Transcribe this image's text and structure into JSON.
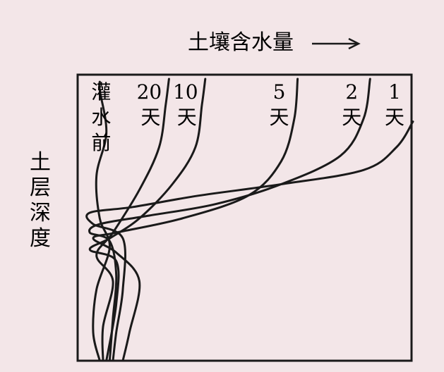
{
  "chart_data": {
    "type": "line",
    "title": "",
    "xlabel": "土壤含水量",
    "ylabel": "土层深度",
    "xlim": [
      0,
      1
    ],
    "ylim": [
      0,
      1
    ],
    "grid": false,
    "legend": "none",
    "series": [
      {
        "label_lines": [
          "灌",
          "水",
          "前"
        ],
        "points": [
          [
            0.05,
            0.02
          ],
          [
            0.05,
            0.05
          ],
          [
            0.07,
            0.2
          ],
          [
            0.04,
            0.35
          ],
          [
            0.05,
            0.5
          ],
          [
            0.08,
            0.6
          ],
          [
            0.04,
            0.75
          ],
          [
            0.03,
            0.9
          ],
          [
            0.05,
            1.0
          ]
        ]
      },
      {
        "label_lines": [
          "20",
          "天"
        ],
        "points": [
          [
            0.26,
            0.01
          ],
          [
            0.25,
            0.1
          ],
          [
            0.23,
            0.25
          ],
          [
            0.17,
            0.4
          ],
          [
            0.09,
            0.55
          ],
          [
            0.04,
            0.63
          ],
          [
            0.09,
            0.72
          ],
          [
            0.06,
            0.88
          ],
          [
            0.06,
            1.0
          ]
        ]
      },
      {
        "label_lines": [
          "10",
          "天"
        ],
        "points": [
          [
            0.37,
            0.01
          ],
          [
            0.36,
            0.1
          ],
          [
            0.34,
            0.25
          ],
          [
            0.27,
            0.38
          ],
          [
            0.17,
            0.5
          ],
          [
            0.08,
            0.57
          ],
          [
            0.02,
            0.61
          ],
          [
            0.1,
            0.65
          ],
          [
            0.1,
            0.8
          ],
          [
            0.07,
            1.0
          ]
        ]
      },
      {
        "label_lines": [
          "5",
          "天"
        ],
        "points": [
          [
            0.65,
            0.01
          ],
          [
            0.64,
            0.15
          ],
          [
            0.6,
            0.3
          ],
          [
            0.5,
            0.42
          ],
          [
            0.3,
            0.5
          ],
          [
            0.1,
            0.55
          ],
          [
            0.03,
            0.57
          ],
          [
            0.1,
            0.62
          ],
          [
            0.17,
            0.72
          ],
          [
            0.14,
            0.9
          ],
          [
            0.12,
            1.0
          ]
        ]
      },
      {
        "label_lines": [
          "2",
          "天"
        ],
        "points": [
          [
            0.87,
            0.01
          ],
          [
            0.85,
            0.15
          ],
          [
            0.78,
            0.28
          ],
          [
            0.6,
            0.38
          ],
          [
            0.4,
            0.45
          ],
          [
            0.2,
            0.49
          ],
          [
            0.05,
            0.52
          ],
          [
            0.02,
            0.55
          ],
          [
            0.08,
            0.58
          ],
          [
            0.1,
            0.7
          ],
          [
            0.09,
            0.85
          ],
          [
            0.08,
            1.0
          ]
        ]
      },
      {
        "label_lines": [
          "1",
          "天"
        ],
        "points": [
          [
            1.0,
            0.16
          ],
          [
            0.95,
            0.25
          ],
          [
            0.85,
            0.33
          ],
          [
            0.6,
            0.38
          ],
          [
            0.35,
            0.42
          ],
          [
            0.15,
            0.46
          ],
          [
            0.02,
            0.48
          ],
          [
            0.03,
            0.52
          ],
          [
            0.12,
            0.57
          ],
          [
            0.12,
            0.75
          ],
          [
            0.1,
            0.9
          ],
          [
            0.09,
            1.0
          ]
        ]
      }
    ]
  }
}
